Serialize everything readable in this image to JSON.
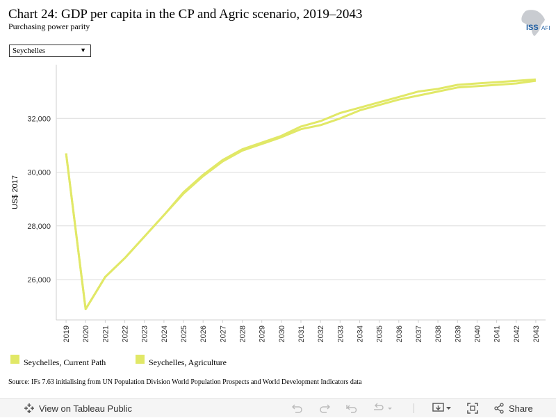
{
  "header": {
    "title": "Chart 24: GDP per capita in the CP and Agric scenario, 2019–2043",
    "subtitle": "Purchasing power parity",
    "logo_text": "ISS",
    "logo_sub": "AFI"
  },
  "filter": {
    "selected": "Seychelles"
  },
  "chart_data": {
    "type": "line",
    "title": "Chart 24: GDP per capita in the CP and Agric scenario, 2019–2043",
    "subtitle": "Purchasing power parity",
    "xlabel": "",
    "ylabel": "US$ 2017",
    "x": [
      "2019",
      "2020",
      "2021",
      "2022",
      "2023",
      "2024",
      "2025",
      "2026",
      "2027",
      "2028",
      "2029",
      "2030",
      "2031",
      "2032",
      "2033",
      "2034",
      "2035",
      "2036",
      "2037",
      "2038",
      "2039",
      "2040",
      "2041",
      "2042",
      "2043"
    ],
    "yticks": [
      26000,
      28000,
      30000,
      32000
    ],
    "ylim": [
      24500,
      34000
    ],
    "grid": true,
    "legend_position": "bottom-left",
    "colors": [
      "#e1e867",
      "#e1e867"
    ],
    "series": [
      {
        "name": "Seychelles, Current Path",
        "values": [
          30700,
          24900,
          26100,
          26800,
          27600,
          28400,
          29250,
          29900,
          30450,
          30850,
          31100,
          31350,
          31700,
          31900,
          32200,
          32400,
          32600,
          32800,
          33000,
          33100,
          33250,
          33300,
          33350,
          33400,
          33450
        ]
      },
      {
        "name": "Seychelles, Agriculture",
        "values": [
          30700,
          24900,
          26100,
          26800,
          27600,
          28400,
          29200,
          29850,
          30400,
          30800,
          31050,
          31300,
          31600,
          31750,
          32000,
          32300,
          32500,
          32700,
          32850,
          33000,
          33150,
          33200,
          33250,
          33300,
          33400
        ]
      }
    ]
  },
  "source": "Source: IFs 7.63 initialising from UN Population Division World Population Prospects and World Development Indicators data",
  "toolbar": {
    "view_label": "View on Tableau Public",
    "share_label": "Share"
  }
}
